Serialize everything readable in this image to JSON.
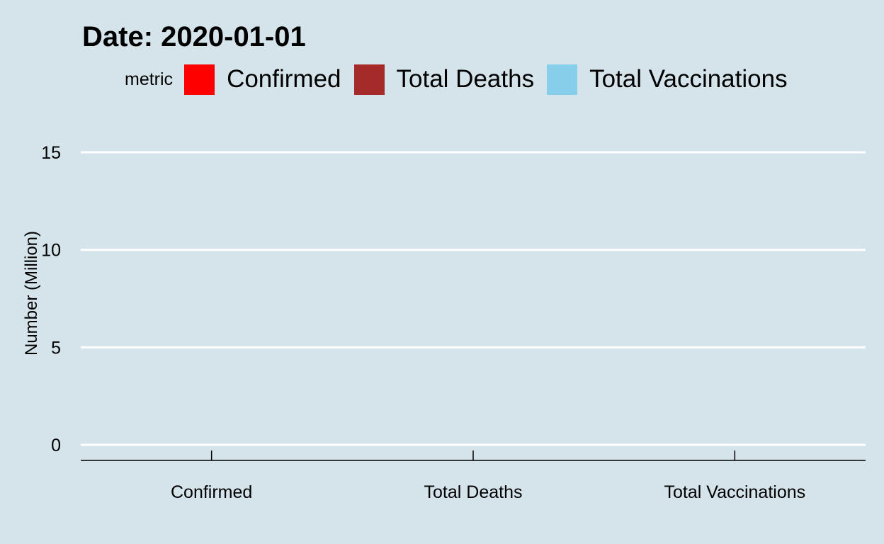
{
  "chart_data": {
    "type": "bar",
    "title": "Date: 2020-01-01",
    "ylabel": "Number (Million)",
    "xlabel": "",
    "categories": [
      "Confirmed",
      "Total Deaths",
      "Total Vaccinations"
    ],
    "values": [
      0,
      0,
      0
    ],
    "colors": [
      "#ff0000",
      "#a52a2a",
      "#87ceeb"
    ],
    "ylim": [
      -0.8,
      17
    ],
    "yticks": [
      0,
      5,
      10,
      15
    ],
    "ytick_labels": [
      "0",
      "5",
      "10",
      "15"
    ],
    "grid": "horizontal major",
    "legend": {
      "title": "metric",
      "placement": "top",
      "entries": [
        "Confirmed",
        "Total Deaths",
        "Total Vaccinations"
      ]
    }
  },
  "colors": {
    "panel_background": "#d5e3ea",
    "gridline": "#ffffff",
    "axis_line": "#000000"
  }
}
